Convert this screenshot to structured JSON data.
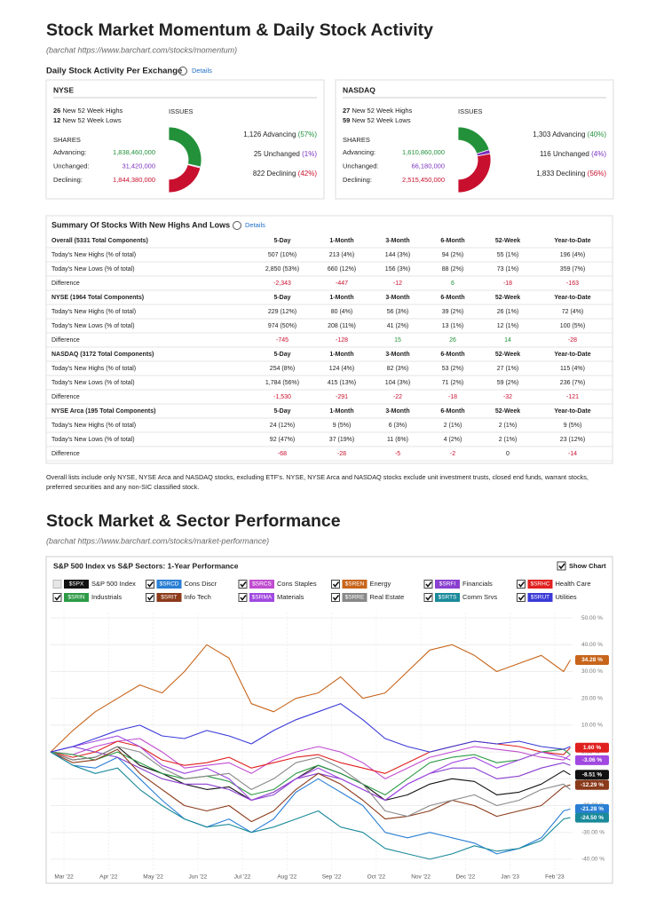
{
  "header": {
    "title": "Stock Market Momentum & Daily Stock Activity",
    "subtitle": "(barchat https://www.barchart.com/stocks/momentum)"
  },
  "activity": {
    "heading": "Daily Stock Activity Per Exchange",
    "details": "Details",
    "issues_label": "ISSUES",
    "shares_label": "SHARES",
    "colors": [
      "#22913a",
      "#7b2fbf",
      "#c8102e"
    ],
    "exchanges": [
      {
        "name": "NYSE",
        "highs": {
          "count": "26",
          "label": "New 52 Week Highs"
        },
        "lows": {
          "count": "12",
          "label": "New 52 Week Lows"
        },
        "shares": [
          {
            "label": "Advancing:",
            "value": "1,838,460,000"
          },
          {
            "label": "Unchanged:",
            "value": "31,420,000"
          },
          {
            "label": "Declining:",
            "value": "1,844,380,000"
          }
        ],
        "issues": [
          {
            "count": "1,126",
            "name": "Advancing",
            "pct": 57,
            "pct_label": "(57%)"
          },
          {
            "count": "25",
            "name": "Unchanged",
            "pct": 1,
            "pct_label": "(1%)"
          },
          {
            "count": "822",
            "name": "Declining",
            "pct": 42,
            "pct_label": "(42%)"
          }
        ]
      },
      {
        "name": "NASDAQ",
        "highs": {
          "count": "27",
          "label": "New 52 Week Highs"
        },
        "lows": {
          "count": "59",
          "label": "New 52 Week Lows"
        },
        "shares": [
          {
            "label": "Advancing:",
            "value": "1,610,860,000"
          },
          {
            "label": "Unchanged:",
            "value": "66,180,000"
          },
          {
            "label": "Declining:",
            "value": "2,515,450,000"
          }
        ],
        "issues": [
          {
            "count": "1,303",
            "name": "Advancing",
            "pct": 40,
            "pct_label": "(40%)"
          },
          {
            "count": "116",
            "name": "Unchanged",
            "pct": 4,
            "pct_label": "(4%)"
          },
          {
            "count": "1,833",
            "name": "Declining",
            "pct": 56,
            "pct_label": "(56%)"
          }
        ]
      }
    ]
  },
  "summary": {
    "title": "Summary Of Stocks With New Highs And Lows",
    "details": "Details",
    "sections": [
      {
        "header": [
          "Overall (5331 Total Components)",
          "5-Day",
          "1-Month",
          "3-Month",
          "6-Month",
          "52-Week",
          "Year-to-Date"
        ],
        "rows": [
          [
            "Today's New Highs (% of total)",
            "507 (10%)",
            "213 (4%)",
            "144 (3%)",
            "94 (2%)",
            "55 (1%)",
            "196 (4%)"
          ],
          [
            "Today's New Lows (% of total)",
            "2,850 (53%)",
            "660 (12%)",
            "156 (3%)",
            "88 (2%)",
            "73 (1%)",
            "359 (7%)"
          ],
          [
            "Difference",
            "-2,343",
            "-447",
            "-12",
            "6",
            "-18",
            "-163"
          ]
        ]
      },
      {
        "header": [
          "NYSE (1964 Total Components)",
          "5-Day",
          "1-Month",
          "3-Month",
          "6-Month",
          "52-Week",
          "Year-to-Date"
        ],
        "rows": [
          [
            "Today's New Highs (% of total)",
            "229 (12%)",
            "80 (4%)",
            "56 (3%)",
            "39 (2%)",
            "26 (1%)",
            "72 (4%)"
          ],
          [
            "Today's New Lows (% of total)",
            "974 (50%)",
            "208 (11%)",
            "41 (2%)",
            "13 (1%)",
            "12 (1%)",
            "100 (5%)"
          ],
          [
            "Difference",
            "-745",
            "-128",
            "15",
            "26",
            "14",
            "-28"
          ]
        ]
      },
      {
        "header": [
          "NASDAQ (3172 Total Components)",
          "5-Day",
          "1-Month",
          "3-Month",
          "6-Month",
          "52-Week",
          "Year-to-Date"
        ],
        "rows": [
          [
            "Today's New Highs (% of total)",
            "254 (8%)",
            "124 (4%)",
            "82 (3%)",
            "53 (2%)",
            "27 (1%)",
            "115 (4%)"
          ],
          [
            "Today's New Lows (% of total)",
            "1,784 (56%)",
            "415 (13%)",
            "104 (3%)",
            "71 (2%)",
            "59 (2%)",
            "236 (7%)"
          ],
          [
            "Difference",
            "-1,530",
            "-291",
            "-22",
            "-18",
            "-32",
            "-121"
          ]
        ]
      },
      {
        "header": [
          "NYSE Arca (195 Total Components)",
          "5-Day",
          "1-Month",
          "3-Month",
          "6-Month",
          "52-Week",
          "Year-to-Date"
        ],
        "rows": [
          [
            "Today's New Highs (% of total)",
            "24 (12%)",
            "9 (5%)",
            "6 (3%)",
            "2 (1%)",
            "2 (1%)",
            "9 (5%)"
          ],
          [
            "Today's New Lows (% of total)",
            "92 (47%)",
            "37 (19%)",
            "11 (6%)",
            "4 (2%)",
            "2 (1%)",
            "23 (12%)"
          ],
          [
            "Difference",
            "-68",
            "-28",
            "-5",
            "-2",
            "0",
            "-14"
          ]
        ]
      }
    ],
    "note": [
      "Overall lists include only NYSE, NYSE Arca and NASDAQ stocks, excluding ETF's. NYSE, NYSE Arca and NASDAQ stocks exclude unit investment trusts, closed end funds, warrant stocks,",
      "preferred securities and any non-SIC classified stock."
    ]
  },
  "section2": {
    "title": "Stock Market & Sector Performance",
    "subtitle": "(barchat https://www.barchart.com/stocks/market-performance)"
  },
  "chart_data": {
    "type": "line",
    "title": "S&P 500 Index vs S&P Sectors: 1-Year Performance",
    "show_chart": "Show Chart",
    "grid": true,
    "x": [
      0,
      0.5,
      1,
      1.5,
      2,
      2.5,
      3,
      3.5,
      4,
      4.5,
      5,
      5.5,
      6,
      6.5,
      7,
      7.5,
      8,
      8.5,
      9,
      9.5,
      10,
      10.5,
      11,
      11.5,
      11.65
    ],
    "xlim": [
      0,
      11.7
    ],
    "xticks": [
      {
        "value": 0.3,
        "label": "Mar '22"
      },
      {
        "value": 1.3,
        "label": "Apr '22"
      },
      {
        "value": 2.3,
        "label": "May '22"
      },
      {
        "value": 3.3,
        "label": "Jun '22"
      },
      {
        "value": 4.3,
        "label": "Jul '22"
      },
      {
        "value": 5.3,
        "label": "Aug '22"
      },
      {
        "value": 6.3,
        "label": "Sep '22"
      },
      {
        "value": 7.3,
        "label": "Oct '22"
      },
      {
        "value": 8.3,
        "label": "Nov '22"
      },
      {
        "value": 9.3,
        "label": "Dec '22"
      },
      {
        "value": 10.3,
        "label": "Jan '23"
      },
      {
        "value": 11.3,
        "label": "Feb '23"
      }
    ],
    "ylim": [
      -44,
      52
    ],
    "yticks": [
      {
        "value": 50,
        "label": "50.00 %"
      },
      {
        "value": 40,
        "label": "40.00 %"
      },
      {
        "value": 30,
        "label": "30.00 %"
      },
      {
        "value": 20,
        "label": "20.00 %"
      },
      {
        "value": 10,
        "label": "10.00 %"
      },
      {
        "value": 0,
        "label": "0.00 %"
      },
      {
        "value": -10,
        "label": "-10.00 %"
      },
      {
        "value": -20,
        "label": "-20.00 %"
      },
      {
        "value": -30,
        "label": "-30.00 %"
      },
      {
        "value": -40,
        "label": "-40.00 %"
      }
    ],
    "series": [
      {
        "symbol": "$SPX",
        "name": "S&P 500 Index",
        "color": "#111111",
        "values": [
          0,
          -3,
          -2,
          2,
          -5,
          -8,
          -12,
          -14,
          -13,
          -18,
          -15,
          -10,
          -5,
          -8,
          -12,
          -18,
          -16,
          -12,
          -10,
          -11,
          -16,
          -15,
          -12,
          -7,
          -8.51
        ],
        "end_label": "-8.51 %"
      },
      {
        "symbol": "$SRCD",
        "name": "Cons Discr",
        "color": "#2a7fd4",
        "values": [
          0,
          -5,
          -6,
          -2,
          -10,
          -18,
          -25,
          -28,
          -25,
          -30,
          -25,
          -15,
          -10,
          -15,
          -20,
          -30,
          -32,
          -30,
          -32,
          -34,
          -38,
          -36,
          -32,
          -22,
          -21.28
        ],
        "end_label": "-21.28 %"
      },
      {
        "symbol": "$SRCS",
        "name": "Cons Staples",
        "color": "#c04cd0",
        "values": [
          0,
          -1,
          2,
          4,
          5,
          0,
          -6,
          -5,
          -4,
          -8,
          -3,
          0,
          2,
          0,
          -4,
          -10,
          -6,
          -2,
          0,
          2,
          1,
          0,
          -2,
          -3,
          -1
        ]
      },
      {
        "symbol": "$SREN",
        "name": "Energy",
        "color": "#c8651b",
        "values": [
          0,
          8,
          15,
          20,
          25,
          22,
          30,
          40,
          35,
          18,
          15,
          20,
          22,
          28,
          20,
          22,
          30,
          38,
          40,
          36,
          30,
          33,
          36,
          30,
          34.28
        ],
        "end_label": "34.28 %"
      },
      {
        "symbol": "$SRFI",
        "name": "Financials",
        "color": "#8a3fd0",
        "values": [
          0,
          2,
          0,
          -2,
          -6,
          -10,
          -12,
          -12,
          -14,
          -18,
          -16,
          -10,
          -8,
          -10,
          -14,
          -18,
          -12,
          -8,
          -6,
          -6,
          -10,
          -9,
          -6,
          -4,
          -5
        ]
      },
      {
        "symbol": "$SRHC",
        "name": "Health Care",
        "color": "#e0201f",
        "values": [
          0,
          -2,
          0,
          4,
          2,
          -3,
          -5,
          -4,
          -2,
          -6,
          -4,
          -2,
          -1,
          -4,
          -6,
          -8,
          -4,
          0,
          2,
          4,
          3,
          2,
          0,
          -1,
          1.6
        ],
        "end_label": "1.60 %"
      },
      {
        "symbol": "$SRIN",
        "name": "Industrials",
        "color": "#2d9a46",
        "values": [
          0,
          -1,
          -3,
          0,
          -4,
          -8,
          -10,
          -9,
          -11,
          -16,
          -14,
          -8,
          -5,
          -8,
          -12,
          -16,
          -10,
          -4,
          -2,
          -1,
          -4,
          -3,
          0,
          1,
          -1
        ]
      },
      {
        "symbol": "$SRIT",
        "name": "Info Tech",
        "color": "#8b3a1a",
        "values": [
          0,
          -4,
          -3,
          1,
          -8,
          -14,
          -20,
          -22,
          -20,
          -26,
          -22,
          -14,
          -8,
          -12,
          -18,
          -25,
          -24,
          -22,
          -18,
          -20,
          -24,
          -22,
          -20,
          -13,
          -12.29
        ],
        "end_label": "-12.29 %"
      },
      {
        "symbol": "$SRMA",
        "name": "Materials",
        "color": "#a048e0",
        "values": [
          0,
          2,
          4,
          6,
          2,
          -5,
          -8,
          -6,
          -10,
          -18,
          -15,
          -10,
          -6,
          -10,
          -14,
          -18,
          -12,
          -8,
          -4,
          -2,
          -6,
          -3,
          0,
          -2,
          -3.06
        ],
        "end_label": "-3.06 %"
      },
      {
        "symbol": "$SRRE",
        "name": "Real Estate",
        "color": "#888888",
        "values": [
          0,
          -3,
          -2,
          2,
          0,
          -6,
          -10,
          -9,
          -8,
          -14,
          -10,
          -4,
          -2,
          -6,
          -12,
          -22,
          -24,
          -20,
          -18,
          -16,
          -20,
          -18,
          -14,
          -12,
          -14
        ]
      },
      {
        "symbol": "$SRTS",
        "name": "Comm Srvs",
        "color": "#1a8a9a",
        "values": [
          0,
          -5,
          -8,
          -6,
          -14,
          -20,
          -25,
          -28,
          -27,
          -30,
          -28,
          -25,
          -22,
          -28,
          -30,
          -36,
          -38,
          -40,
          -38,
          -35,
          -37,
          -36,
          -33,
          -25,
          -24.5
        ],
        "end_label": "-24.50 %"
      },
      {
        "symbol": "$SRUT",
        "name": "Utilities",
        "color": "#3a3ad8",
        "values": [
          0,
          2,
          5,
          8,
          10,
          6,
          5,
          8,
          6,
          3,
          8,
          12,
          15,
          18,
          12,
          5,
          2,
          0,
          2,
          4,
          3,
          4,
          2,
          1,
          2
        ]
      }
    ]
  }
}
